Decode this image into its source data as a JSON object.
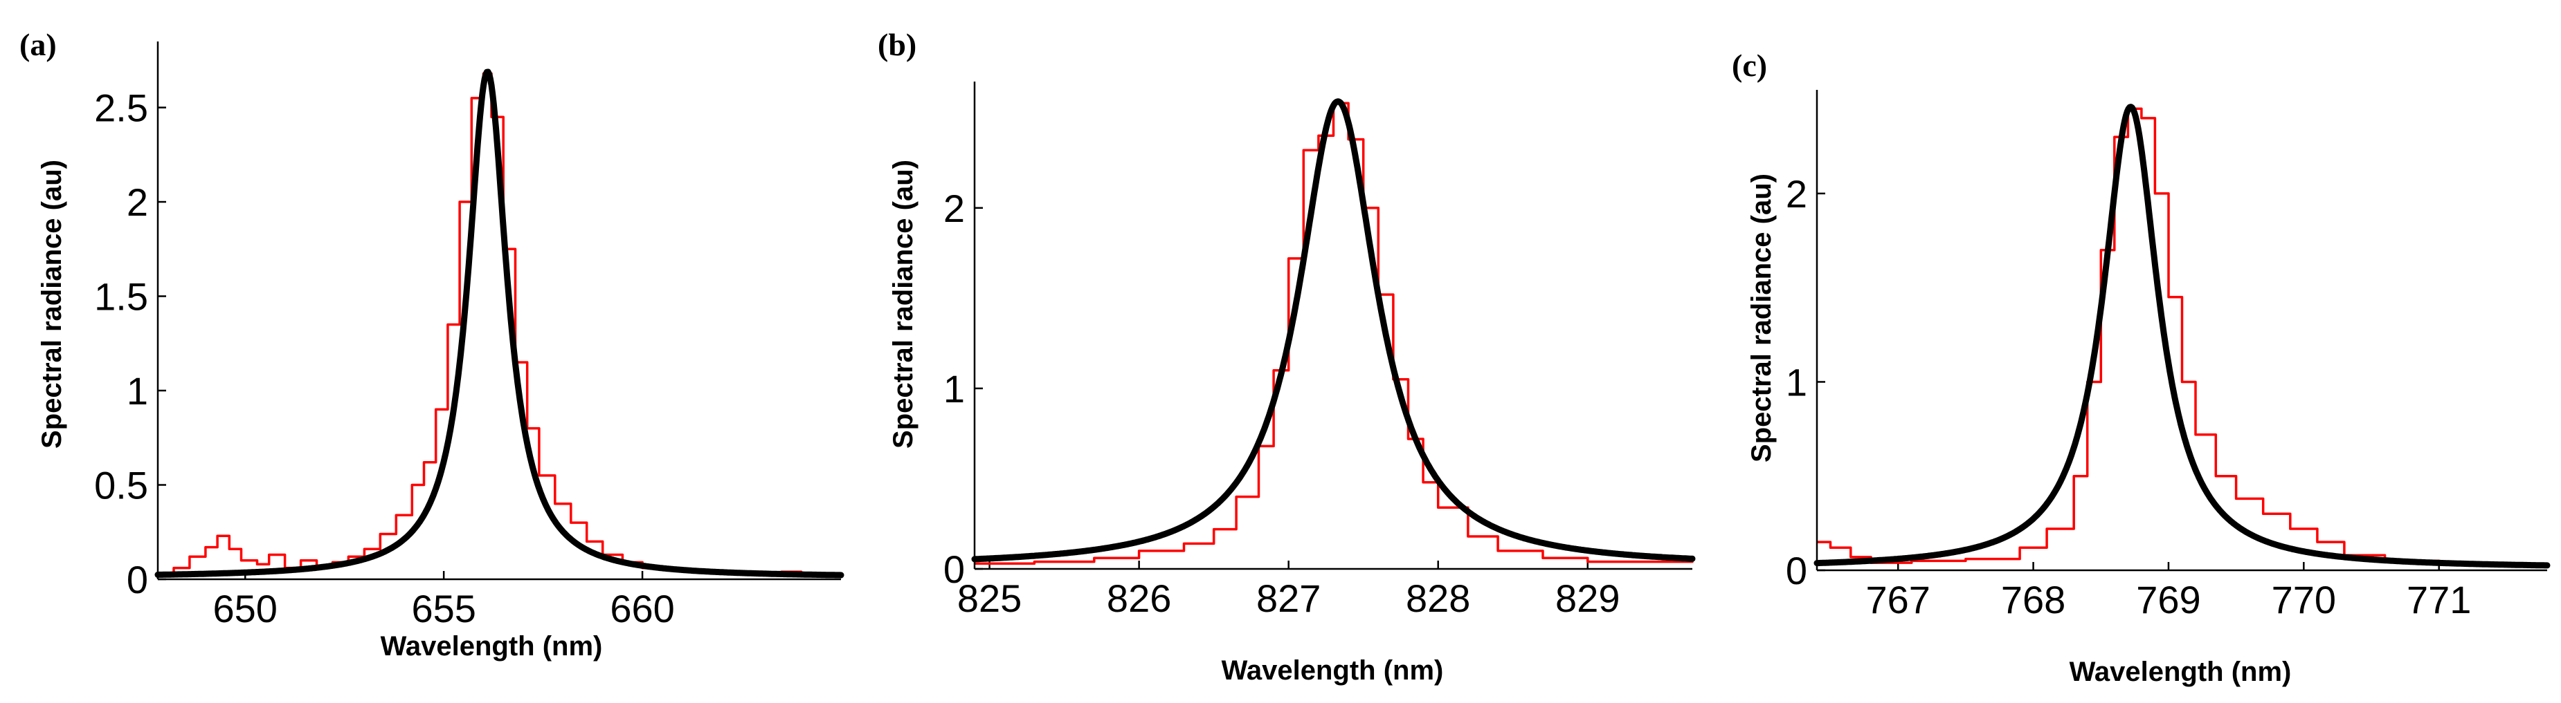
{
  "colors": {
    "measured": "#ff0000",
    "fit": "#000000",
    "axes": "#000000",
    "background": "#ffffff"
  },
  "chart_data": [
    {
      "type": "line",
      "panel_label": "(a)",
      "xlabel": "Wavelength (nm)",
      "ylabel": "Spectral radiance (au)",
      "xlim": [
        647.8,
        665
      ],
      "ylim": [
        0,
        2.85
      ],
      "xticks": [
        650,
        655,
        660
      ],
      "xtick_labels": [
        "650",
        "655",
        "660"
      ],
      "yticks": [
        0,
        0.5,
        1,
        1.5,
        2,
        2.5
      ],
      "ytick_labels": [
        "0",
        "0.5",
        "1",
        "1.5",
        "2",
        "2.5"
      ],
      "grid": false,
      "series": [
        {
          "style": "measured",
          "x": [
            647.8,
            648.2,
            648.6,
            649.0,
            649.3,
            649.6,
            649.9,
            650.3,
            650.6,
            651.0,
            651.4,
            651.8,
            652.2,
            652.6,
            653.0,
            653.4,
            653.8,
            654.2,
            654.5,
            654.8,
            655.1,
            655.4,
            655.7,
            656.0,
            656.2,
            656.5,
            656.8,
            657.1,
            657.4,
            657.8,
            658.2,
            658.6,
            659.0,
            659.5,
            660.0,
            660.5,
            661.0,
            661.5,
            662.0,
            662.5,
            663.0,
            663.5,
            664.0,
            664.5,
            665.0
          ],
          "y": [
            0.02,
            0.06,
            0.12,
            0.17,
            0.23,
            0.16,
            0.1,
            0.08,
            0.13,
            0.06,
            0.1,
            0.07,
            0.09,
            0.12,
            0.16,
            0.24,
            0.34,
            0.5,
            0.62,
            0.9,
            1.35,
            2.0,
            2.55,
            2.68,
            2.45,
            1.75,
            1.15,
            0.8,
            0.55,
            0.4,
            0.3,
            0.2,
            0.13,
            0.09,
            0.06,
            0.05,
            0.04,
            0.04,
            0.03,
            0.04,
            0.03,
            0.04,
            0.03,
            0.03,
            0.02
          ]
        },
        {
          "style": "fit",
          "model": "lorentzian",
          "center": 656.1,
          "amplitude": 2.68,
          "hwhm": 0.6,
          "offset": 0.01
        }
      ]
    },
    {
      "type": "line",
      "panel_label": "(b)",
      "xlabel": "Wavelength (nm)",
      "ylabel": "Spectral radiance (au)",
      "xlim": [
        824.9,
        829.7
      ],
      "ylim": [
        0,
        2.7
      ],
      "xticks": [
        825,
        826,
        827,
        828,
        829
      ],
      "xtick_labels": [
        "825",
        "826",
        "827",
        "828",
        "829"
      ],
      "yticks": [
        0,
        1,
        2
      ],
      "ytick_labels": [
        "0",
        "1",
        "2"
      ],
      "grid": false,
      "series": [
        {
          "style": "measured",
          "x": [
            824.9,
            825.3,
            825.7,
            826.0,
            826.3,
            826.5,
            826.65,
            826.8,
            826.9,
            827.0,
            827.1,
            827.2,
            827.3,
            827.4,
            827.5,
            827.6,
            827.7,
            827.8,
            827.9,
            828.0,
            828.2,
            828.4,
            828.7,
            829.0,
            829.3,
            829.7
          ],
          "y": [
            0.03,
            0.04,
            0.06,
            0.1,
            0.14,
            0.22,
            0.4,
            0.68,
            1.1,
            1.72,
            2.32,
            2.4,
            2.58,
            2.38,
            2.0,
            1.52,
            1.05,
            0.72,
            0.48,
            0.34,
            0.18,
            0.1,
            0.06,
            0.04,
            0.04,
            0.05
          ]
        },
        {
          "style": "fit",
          "model": "lorentzian",
          "center": 827.33,
          "amplitude": 2.58,
          "hwhm": 0.32,
          "offset": 0.01
        }
      ]
    },
    {
      "type": "line",
      "panel_label": "(c)",
      "xlabel": "Wavelength (nm)",
      "ylabel": "Spectral radiance (au)",
      "xlim": [
        766.4,
        771.8
      ],
      "ylim": [
        0,
        2.55
      ],
      "xticks": [
        767,
        768,
        769,
        770,
        771
      ],
      "xtick_labels": [
        "767",
        "768",
        "769",
        "770",
        "771"
      ],
      "yticks": [
        0,
        1,
        2
      ],
      "ytick_labels": [
        "0",
        "1",
        "2"
      ],
      "grid": false,
      "series": [
        {
          "style": "measured",
          "x": [
            766.4,
            766.5,
            766.65,
            766.8,
            767.1,
            767.5,
            767.9,
            768.1,
            768.3,
            768.4,
            768.5,
            768.6,
            768.7,
            768.8,
            768.9,
            769.0,
            769.1,
            769.2,
            769.35,
            769.5,
            769.7,
            769.9,
            770.1,
            770.3,
            770.6,
            771.0,
            771.4,
            771.8
          ],
          "y": [
            0.15,
            0.12,
            0.07,
            0.04,
            0.05,
            0.06,
            0.12,
            0.22,
            0.5,
            1.0,
            1.7,
            2.3,
            2.45,
            2.4,
            2.0,
            1.45,
            1.0,
            0.72,
            0.5,
            0.38,
            0.3,
            0.22,
            0.15,
            0.08,
            0.05,
            0.04,
            0.03,
            0.02
          ]
        },
        {
          "style": "fit",
          "model": "lorentzian",
          "center": 768.72,
          "amplitude": 2.45,
          "hwhm": 0.25,
          "offset": 0.01
        }
      ]
    }
  ]
}
